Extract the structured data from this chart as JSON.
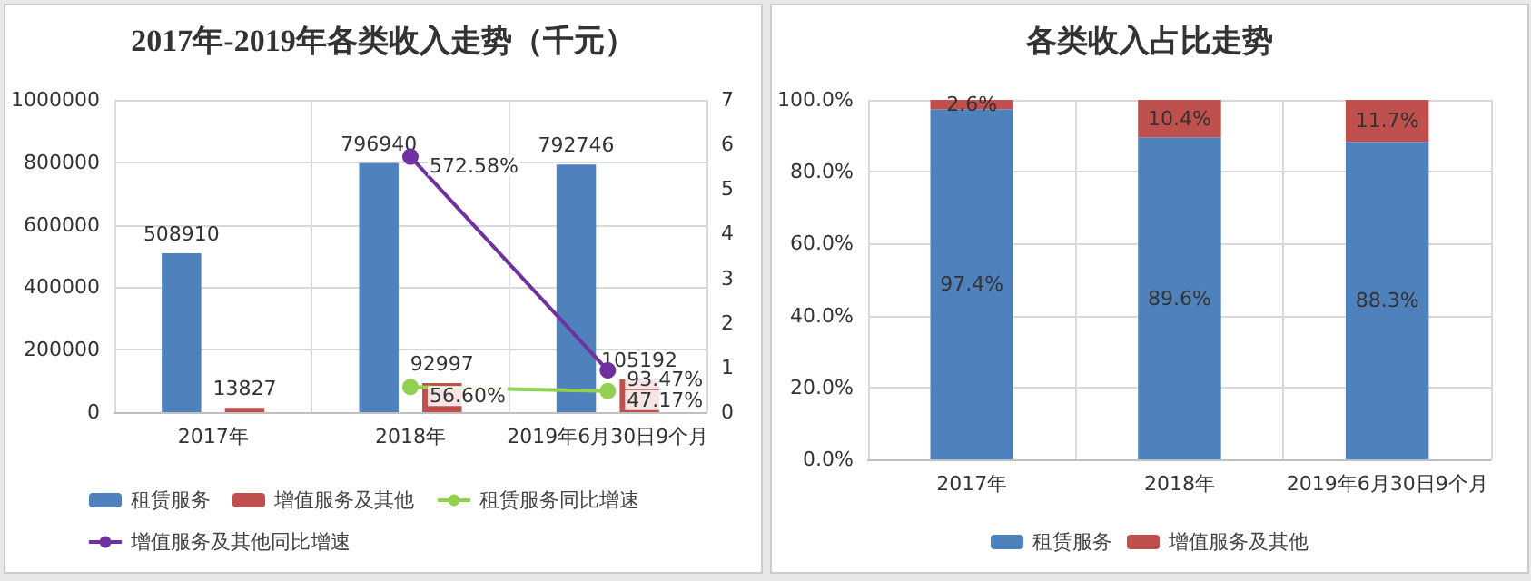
{
  "chart_data": [
    {
      "type": "bar",
      "title": "2017年-2019年各类收入走势（千元）",
      "categories": [
        "2017年",
        "2018年",
        "2019年6月30日9个月"
      ],
      "series": [
        {
          "name": "租赁服务",
          "color": "#4f81bd",
          "values": [
            508910,
            796940,
            792746
          ]
        },
        {
          "name": "增值服务及其他",
          "color": "#c0504d",
          "values": [
            13827,
            92997,
            105192
          ]
        },
        {
          "name": "租赁服务同比增速",
          "type": "line",
          "axis": "y2",
          "color": "#92d050",
          "values": [
            null,
            0.566,
            0.4717
          ],
          "value_labels": [
            null,
            "56.60%",
            "47.17%"
          ]
        },
        {
          "name": "增值服务及其他同比增速",
          "type": "line",
          "axis": "y2",
          "color": "#7030a0",
          "values": [
            null,
            5.7258,
            0.9347
          ],
          "value_labels": [
            null,
            "572.58%",
            "93.47%"
          ]
        }
      ],
      "data_labels": true,
      "ylim": [
        0,
        1000000
      ],
      "yticks": [
        0,
        200000,
        400000,
        600000,
        800000,
        1000000
      ],
      "y2lim": [
        0,
        7
      ],
      "y2ticks": [
        0,
        1,
        2,
        3,
        4,
        5,
        6,
        7
      ],
      "grid": true,
      "legend": "bottom",
      "marker": "circle"
    },
    {
      "type": "bar",
      "title": "各类收入占比走势",
      "categories": [
        "2017年",
        "2018年",
        "2019年6月30日9个月"
      ],
      "stacked": true,
      "series": [
        {
          "name": "租赁服务",
          "color": "#4f81bd",
          "values": [
            97.4,
            89.6,
            88.3
          ],
          "value_labels": [
            "97.4%",
            "89.6%",
            "88.3%"
          ]
        },
        {
          "name": "增值服务及其他",
          "color": "#c0504d",
          "values": [
            2.6,
            10.4,
            11.7
          ],
          "value_labels": [
            "2.6%",
            "10.4%",
            "11.7%"
          ]
        }
      ],
      "ylim": [
        0,
        100
      ],
      "yticks": [
        {
          "value": 0,
          "label": "0.0%"
        },
        {
          "value": 20,
          "label": "20.0%"
        },
        {
          "value": 40,
          "label": "40.0%"
        },
        {
          "value": 60,
          "label": "60.0%"
        },
        {
          "value": 80,
          "label": "80.0%"
        },
        {
          "value": 100,
          "label": "100.0%"
        }
      ],
      "grid": true,
      "legend": "bottom"
    }
  ]
}
